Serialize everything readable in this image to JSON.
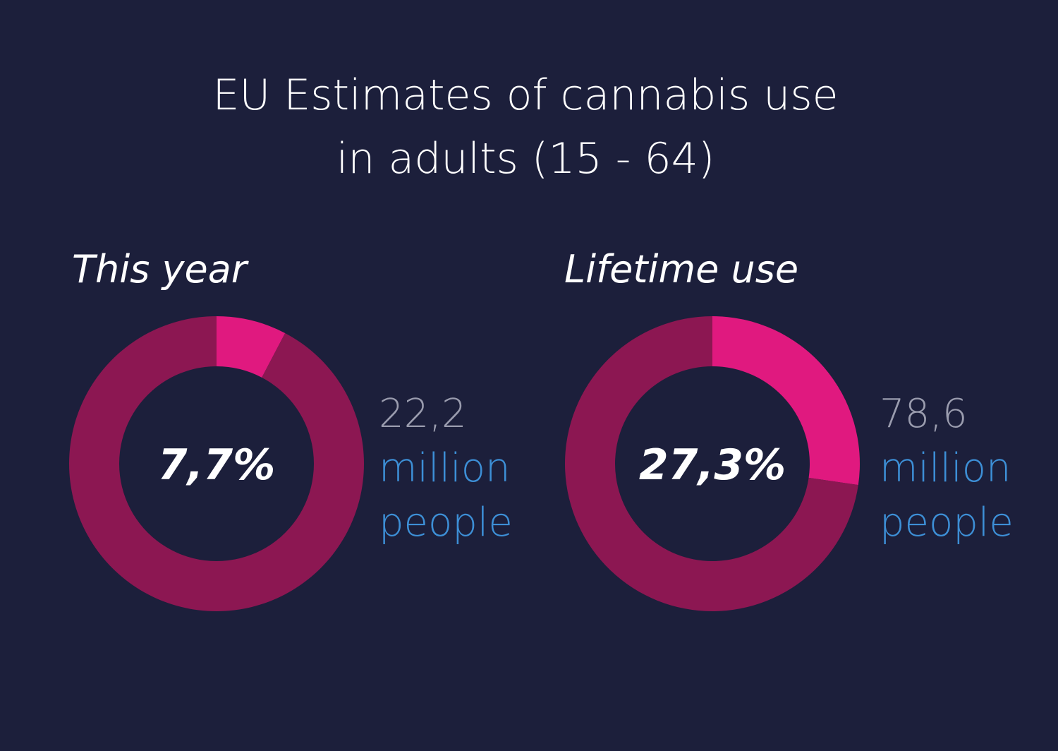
{
  "title": [
    "EU Estimates of cannabis use",
    "in adults (15 - 64)"
  ],
  "chart_data": [
    {
      "type": "donut",
      "title": "This year",
      "values": [
        7.7,
        92.3
      ],
      "value_labels": [
        "7,7%",
        null
      ],
      "colors": [
        "#e0197f",
        "#8c1752"
      ],
      "annotation": [
        "22,2",
        "million",
        "people"
      ]
    },
    {
      "type": "donut",
      "title": "Lifetime use",
      "values": [
        27.3,
        72.7
      ],
      "value_labels": [
        "27,3%",
        null
      ],
      "colors": [
        "#e0197f",
        "#8c1752"
      ],
      "annotation": [
        "78,6",
        "million",
        "people"
      ]
    }
  ]
}
